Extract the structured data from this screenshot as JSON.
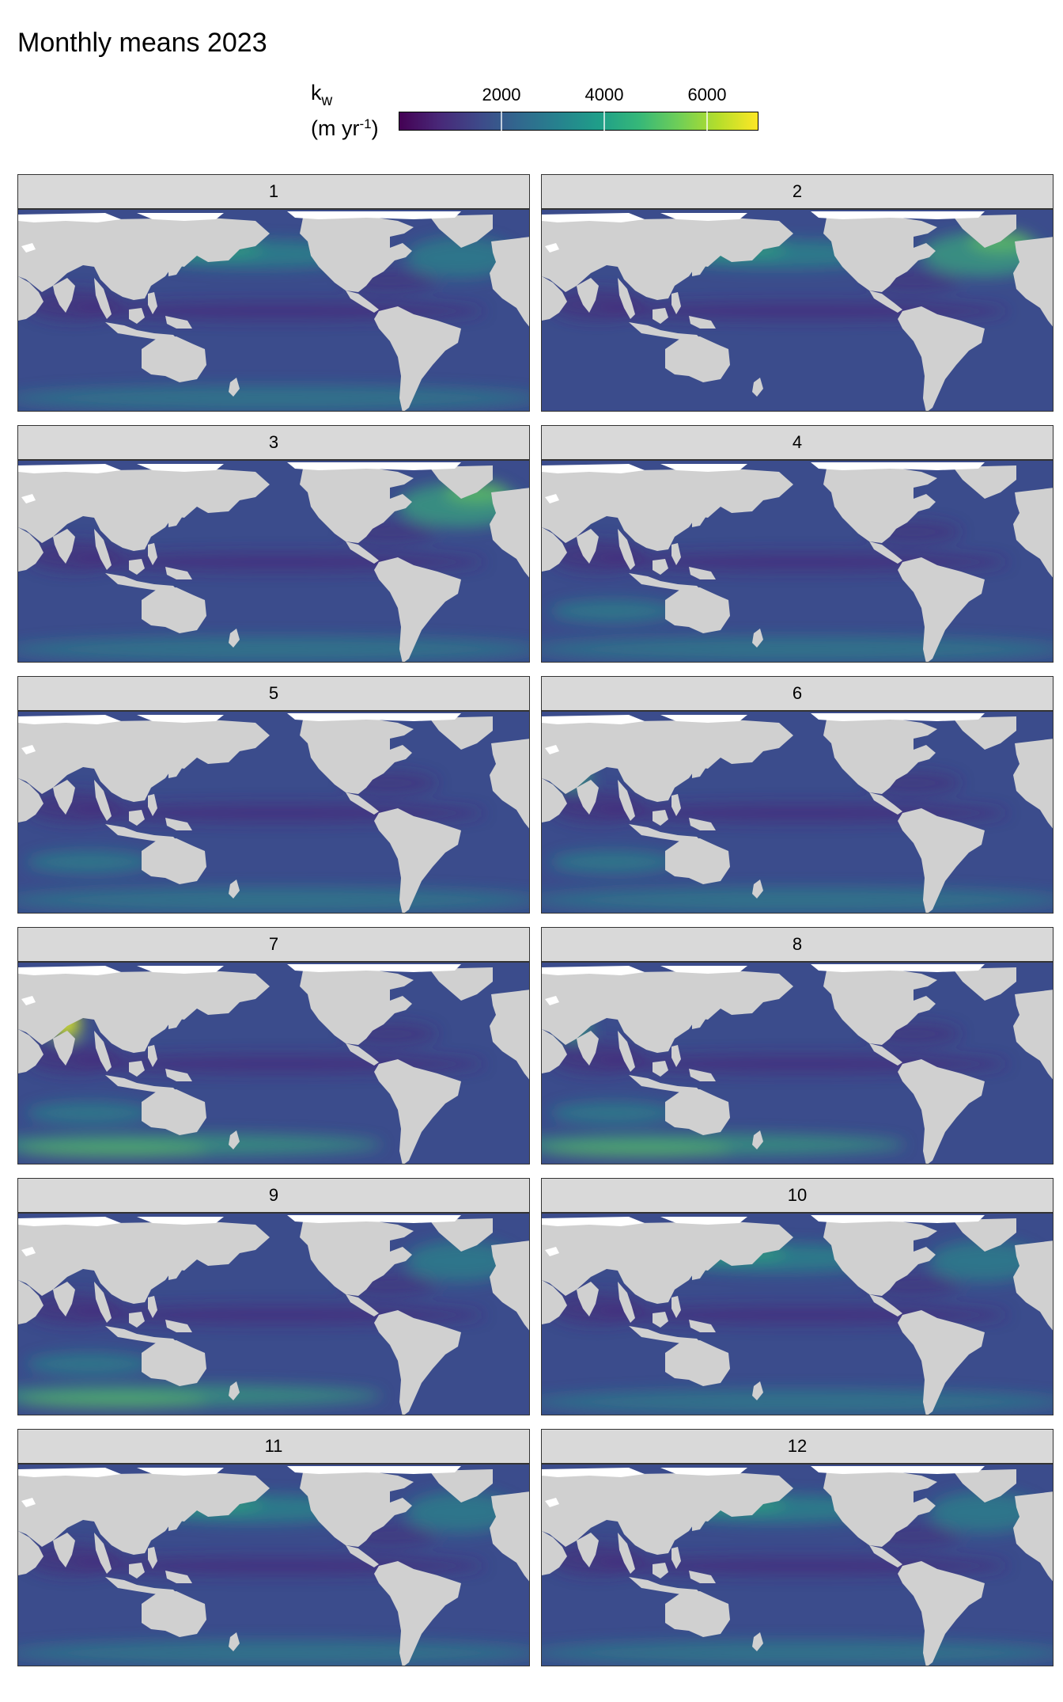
{
  "figure": {
    "title": "Monthly means 2023"
  },
  "legend": {
    "variable_symbol": "k",
    "variable_subscript": "w",
    "unit_prefix": "(m yr",
    "unit_exponent": "-1",
    "unit_suffix": ")",
    "ticks": [
      {
        "label": "2000",
        "value": 2000
      },
      {
        "label": "4000",
        "value": 4000
      },
      {
        "label": "6000",
        "value": 6000
      }
    ],
    "range": [
      0,
      7000
    ],
    "colormap": "viridis",
    "colors": [
      "#440154",
      "#482878",
      "#3e4989",
      "#31688e",
      "#26828e",
      "#1f9e89",
      "#35b779",
      "#6ece58",
      "#b5de2b",
      "#fde725"
    ]
  },
  "map_style": {
    "land_color": "#d0d0d0",
    "no_data_color": "#ffffff",
    "ocean_base_color": "#3b4c8c"
  },
  "panels": [
    {
      "label": "1",
      "hotspots": [
        "north-pacific-band",
        "north-atlantic",
        "southern-ocean"
      ]
    },
    {
      "label": "2",
      "hotspots": [
        "north-atlantic-strong",
        "north-pacific-band"
      ]
    },
    {
      "label": "3",
      "hotspots": [
        "north-atlantic-strong",
        "southern-ocean"
      ]
    },
    {
      "label": "4",
      "hotspots": [
        "southern-ocean",
        "south-indian"
      ]
    },
    {
      "label": "5",
      "hotspots": [
        "southern-ocean",
        "south-indian"
      ]
    },
    {
      "label": "6",
      "hotspots": [
        "arabian-sea",
        "southern-ocean",
        "south-indian"
      ]
    },
    {
      "label": "7",
      "hotspots": [
        "arabian-sea-strong",
        "southern-ocean-strong",
        "south-indian"
      ]
    },
    {
      "label": "8",
      "hotspots": [
        "arabian-sea",
        "southern-ocean-strong",
        "south-indian"
      ]
    },
    {
      "label": "9",
      "hotspots": [
        "southern-ocean-strong",
        "south-indian",
        "north-atlantic"
      ]
    },
    {
      "label": "10",
      "hotspots": [
        "southern-ocean",
        "north-atlantic",
        "north-pacific-band"
      ]
    },
    {
      "label": "11",
      "hotspots": [
        "north-pacific-band",
        "north-atlantic",
        "southern-ocean"
      ]
    },
    {
      "label": "12",
      "hotspots": [
        "north-pacific-band",
        "north-atlantic",
        "southern-ocean"
      ]
    }
  ]
}
